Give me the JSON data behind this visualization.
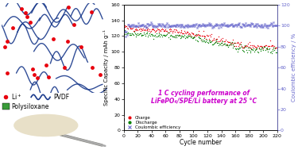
{
  "title": "1 C cycling performance of\nLiFePO₄/SPE/Li battery at 25 °C",
  "xlabel": "Cycle number",
  "ylabel_left": "Specific Capacity / mAh g⁻¹",
  "ylabel_right": "Coulombic efficiency / %",
  "xlim": [
    0,
    220
  ],
  "ylim_left": [
    0,
    160
  ],
  "ylim_right": [
    0,
    120
  ],
  "yticks_left": [
    0,
    20,
    40,
    60,
    80,
    100,
    120,
    140,
    160
  ],
  "yticks_right": [
    0,
    20,
    40,
    60,
    80,
    100,
    120
  ],
  "xticks": [
    0,
    20,
    40,
    60,
    80,
    100,
    120,
    140,
    160,
    180,
    200,
    220
  ],
  "charge_color": "#e8000d",
  "discharge_color": "#008000",
  "coulombic_color": "#6666cc",
  "legend_labels": [
    "Charge",
    "Discharge",
    "Coulombic efficiency"
  ],
  "bg_color": "#ffffff",
  "schematic_bg": "#3a9c3a",
  "li_color": "#e8000d",
  "pvdf_color": "#1a3a8c",
  "title_color": "#cc00cc",
  "title_fontsize": 5.5,
  "photo_bg": "#1a1a1a",
  "membrane_color": "#e8e0c8"
}
